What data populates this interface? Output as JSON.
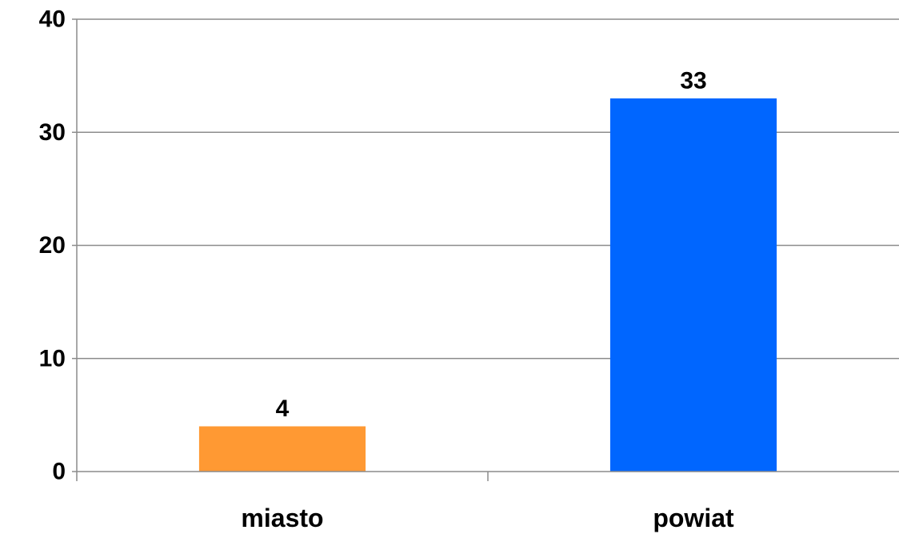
{
  "chart_data": {
    "type": "bar",
    "title": "",
    "xlabel": "",
    "ylabel": "",
    "categories": [
      "miasto",
      "powiat"
    ],
    "values": [
      4,
      33
    ],
    "data_labels": [
      "4",
      "33"
    ],
    "colors": [
      "#ff9933",
      "#0066ff"
    ],
    "ylim": [
      0,
      40
    ],
    "yticks": [
      0,
      10,
      20,
      30,
      40
    ],
    "ytick_labels": [
      "0",
      "10",
      "20",
      "30",
      "40"
    ],
    "grid": true,
    "legend": "none"
  }
}
